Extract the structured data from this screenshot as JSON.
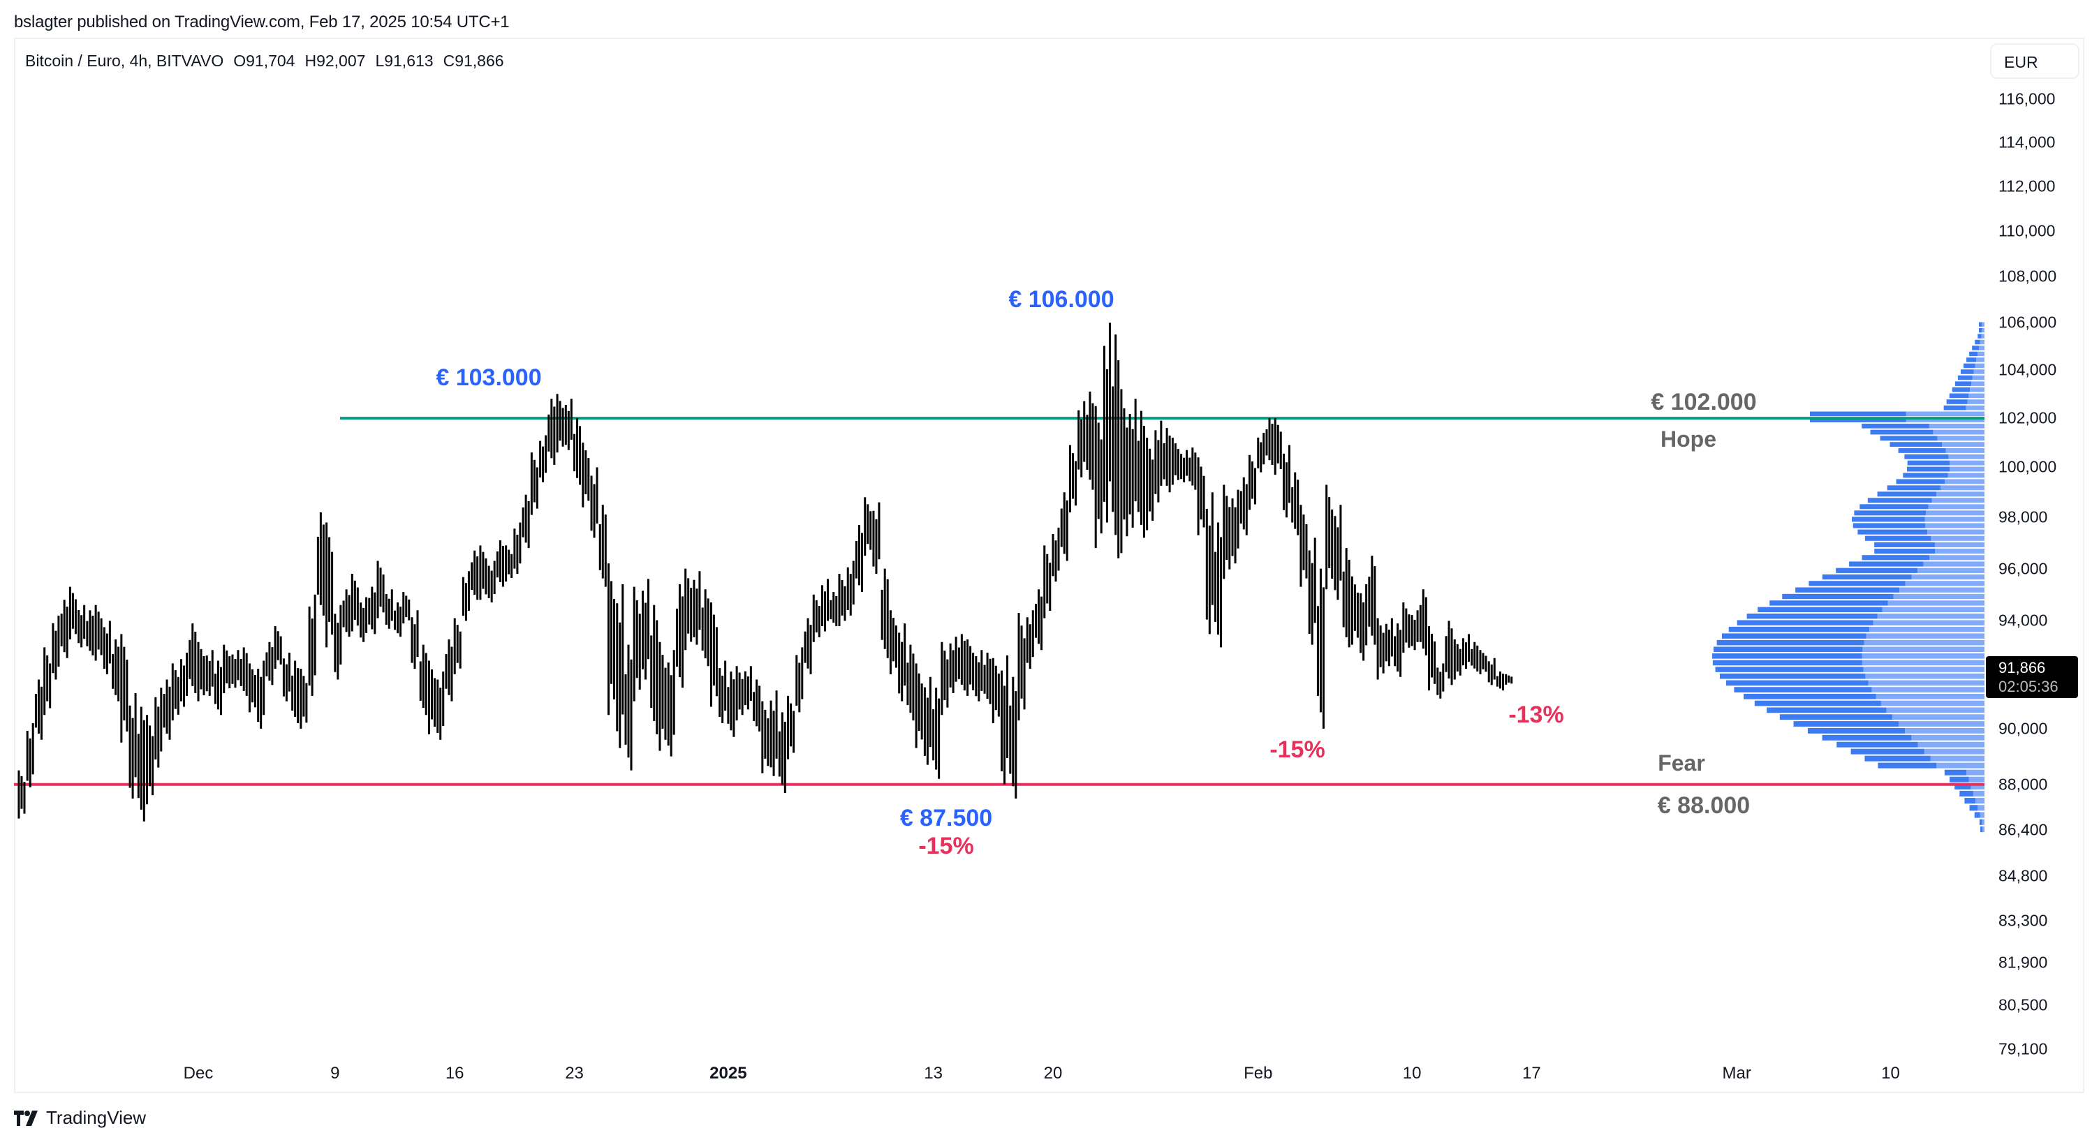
{
  "header": {
    "published": "bslagter published on TradingView.com, Feb 17, 2025 10:54 UTC+1"
  },
  "legend": {
    "symbol": "Bitcoin / Euro, 4h, BITVAVO",
    "open": "O91,704",
    "high": "H92,007",
    "low": "L91,613",
    "close": "C91,866"
  },
  "price_axis": {
    "currency": "EUR",
    "last_price": "91,866",
    "countdown": "02:05:36",
    "labels": [
      "116,000",
      "114,000",
      "112,000",
      "110,000",
      "108,000",
      "106,000",
      "104,000",
      "102,000",
      "100,000",
      "98,000",
      "96,000",
      "94,000",
      "90,000",
      "88,000",
      "86,400",
      "84,800",
      "83,300",
      "81,900",
      "80,500",
      "79,100"
    ]
  },
  "time_axis": {
    "labels": [
      {
        "text": "Dec",
        "date": "2024-12-01",
        "bold": false
      },
      {
        "text": "9",
        "date": "2024-12-09",
        "bold": false
      },
      {
        "text": "16",
        "date": "2024-12-16",
        "bold": false
      },
      {
        "text": "23",
        "date": "2024-12-23",
        "bold": false
      },
      {
        "text": "2025",
        "date": "2025-01-01",
        "bold": true
      },
      {
        "text": "13",
        "date": "2025-01-13",
        "bold": false
      },
      {
        "text": "20",
        "date": "2025-01-20",
        "bold": false
      },
      {
        "text": "Feb",
        "date": "2025-02-01",
        "bold": false
      },
      {
        "text": "10",
        "date": "2025-02-10",
        "bold": false
      },
      {
        "text": "17",
        "date": "2025-02-17",
        "bold": false
      },
      {
        "text": "Mar",
        "date": "2025-03-01",
        "bold": false
      },
      {
        "text": "10",
        "date": "2025-03-10",
        "bold": false
      }
    ]
  },
  "annotations": {
    "peak1": "€ 103.000",
    "peak2": "€ 106.000",
    "low1": "€ 87.500",
    "low1_pct": "-15%",
    "low2_pct": "-15%",
    "current_pct": "-13%",
    "hope_price": "€ 102.000",
    "hope_label": "Hope",
    "fear_label": "Fear",
    "fear_price": "€ 88.000"
  },
  "colors": {
    "candles": "#000000",
    "hope_line": "#089981",
    "fear_line": "#e7315a",
    "annotation_blue": "#2962ff",
    "annotation_red": "#e7315a",
    "annotation_gray": "#666666",
    "vp_dark": "#3d7bf2",
    "vp_light": "#82aafa"
  },
  "footer": {
    "brand": "TradingView"
  },
  "chart_data": {
    "type": "bar",
    "title": "Bitcoin / Euro, 4h, BITVAVO",
    "xlabel": "",
    "ylabel": "EUR",
    "y_scale": "log",
    "ylim": [
      79100,
      116000
    ],
    "grid": false,
    "x_range": [
      "2024-11-20",
      "2025-03-15"
    ],
    "ohlc_last": {
      "open": 91704,
      "high": 92007,
      "low": 91613,
      "close": 91866
    },
    "horizontal_lines": [
      {
        "name": "Hope",
        "price": 102000,
        "color": "#089981",
        "from": "2024-12-10"
      },
      {
        "name": "Fear",
        "price": 88000,
        "color": "#e7315a",
        "from": "2024-11-20"
      }
    ],
    "bars_interval": "12h",
    "bars_start": "2024-11-20T12:00",
    "bars_hl": [
      [
        88500,
        86800
      ],
      [
        90200,
        87900
      ],
      [
        91800,
        89600
      ],
      [
        93000,
        90500
      ],
      [
        94200,
        91800
      ],
      [
        94800,
        92600
      ],
      [
        95300,
        93300
      ],
      [
        94600,
        93000
      ],
      [
        94400,
        92700
      ],
      [
        94600,
        92500
      ],
      [
        94000,
        92000
      ],
      [
        93300,
        91000
      ],
      [
        93500,
        89500
      ],
      [
        91300,
        87500
      ],
      [
        90800,
        86700
      ],
      [
        90500,
        87300
      ],
      [
        91500,
        88600
      ],
      [
        91800,
        89600
      ],
      [
        92400,
        90300
      ],
      [
        92800,
        90800
      ],
      [
        93900,
        91300
      ],
      [
        93200,
        91000
      ],
      [
        92900,
        91200
      ],
      [
        92500,
        90500
      ],
      [
        93100,
        91300
      ],
      [
        92900,
        91500
      ],
      [
        93000,
        91200
      ],
      [
        92400,
        90600
      ],
      [
        92500,
        90000
      ],
      [
        93200,
        91600
      ],
      [
        93800,
        92200
      ],
      [
        92800,
        91000
      ],
      [
        92500,
        90200
      ],
      [
        92200,
        90000
      ],
      [
        95000,
        91200
      ],
      [
        98200,
        94200
      ],
      [
        97800,
        93000
      ],
      [
        94600,
        91800
      ],
      [
        95200,
        93400
      ],
      [
        95800,
        93600
      ],
      [
        94900,
        93200
      ],
      [
        95300,
        93500
      ],
      [
        96300,
        94100
      ],
      [
        95200,
        93700
      ],
      [
        94700,
        93400
      ],
      [
        95100,
        93900
      ],
      [
        94400,
        92200
      ],
      [
        93100,
        90500
      ],
      [
        92500,
        89800
      ],
      [
        92100,
        89600
      ],
      [
        93300,
        91000
      ],
      [
        94100,
        92000
      ],
      [
        95900,
        94000
      ],
      [
        96700,
        94800
      ],
      [
        96900,
        94800
      ],
      [
        96300,
        94700
      ],
      [
        97100,
        95300
      ],
      [
        96900,
        95500
      ],
      [
        97800,
        95800
      ],
      [
        98900,
        96800
      ],
      [
        100600,
        98100
      ],
      [
        101300,
        99400
      ],
      [
        102800,
        100100
      ],
      [
        103000,
        100600
      ],
      [
        102800,
        100700
      ],
      [
        102000,
        99300
      ],
      [
        101000,
        98400
      ],
      [
        100000,
        97200
      ],
      [
        98500,
        95300
      ],
      [
        96200,
        90500
      ],
      [
        95400,
        89300
      ],
      [
        93100,
        88500
      ],
      [
        95300,
        91000
      ],
      [
        95600,
        91800
      ],
      [
        94600,
        89800
      ],
      [
        93200,
        89200
      ],
      [
        92900,
        89000
      ],
      [
        95400,
        91500
      ],
      [
        96000,
        92900
      ],
      [
        95900,
        93100
      ],
      [
        95200,
        92300
      ],
      [
        94700,
        90800
      ],
      [
        92500,
        90200
      ],
      [
        92100,
        89700
      ],
      [
        92300,
        90300
      ],
      [
        92300,
        90700
      ],
      [
        91800,
        89900
      ],
      [
        91000,
        88400
      ],
      [
        91400,
        88300
      ],
      [
        90600,
        87700
      ],
      [
        91200,
        88900
      ],
      [
        93000,
        90600
      ],
      [
        94100,
        92000
      ],
      [
        95000,
        93200
      ],
      [
        95600,
        93600
      ],
      [
        95100,
        93800
      ],
      [
        95800,
        93800
      ],
      [
        96300,
        94200
      ],
      [
        97700,
        95100
      ],
      [
        98800,
        96500
      ],
      [
        98600,
        95800
      ],
      [
        96000,
        92600
      ],
      [
        94400,
        92000
      ],
      [
        93900,
        91000
      ],
      [
        93100,
        90300
      ],
      [
        92400,
        89300
      ],
      [
        91900,
        88700
      ],
      [
        91500,
        88200
      ],
      [
        93200,
        90500
      ],
      [
        93400,
        91300
      ],
      [
        93500,
        91400
      ],
      [
        93300,
        91200
      ],
      [
        92900,
        91000
      ],
      [
        92800,
        90900
      ],
      [
        92600,
        90200
      ],
      [
        92700,
        88000
      ],
      [
        91900,
        87500
      ],
      [
        94300,
        90300
      ],
      [
        94400,
        92200
      ],
      [
        95200,
        92900
      ],
      [
        96900,
        94100
      ],
      [
        97600,
        95500
      ],
      [
        99000,
        96300
      ],
      [
        100900,
        98200
      ],
      [
        102700,
        99600
      ],
      [
        103100,
        99100
      ],
      [
        102500,
        96800
      ],
      [
        106000,
        97800
      ],
      [
        105500,
        96400
      ],
      [
        103200,
        96600
      ],
      [
        102800,
        97600
      ],
      [
        102300,
        97200
      ],
      [
        101200,
        97500
      ],
      [
        101900,
        98600
      ],
      [
        101600,
        99000
      ],
      [
        101200,
        99300
      ],
      [
        100700,
        99400
      ],
      [
        100800,
        99100
      ],
      [
        100400,
        97300
      ],
      [
        99000,
        93500
      ],
      [
        97800,
        93000
      ],
      [
        99300,
        95600
      ],
      [
        99100,
        96200
      ],
      [
        99600,
        97300
      ],
      [
        100500,
        98300
      ],
      [
        101400,
        99800
      ],
      [
        102000,
        100100
      ],
      [
        102000,
        99700
      ],
      [
        100900,
        98000
      ],
      [
        99800,
        97300
      ],
      [
        98500,
        95300
      ],
      [
        97200,
        93100
      ],
      [
        96000,
        90000
      ],
      [
        99300,
        95200
      ],
      [
        98500,
        94800
      ],
      [
        96800,
        93000
      ],
      [
        95700,
        93100
      ],
      [
        95400,
        92500
      ],
      [
        96500,
        93100
      ],
      [
        94100,
        91800
      ],
      [
        94100,
        92300
      ],
      [
        93900,
        91900
      ],
      [
        94700,
        92800
      ],
      [
        94400,
        92900
      ],
      [
        95200,
        92700
      ],
      [
        93800,
        91400
      ],
      [
        92400,
        91100
      ],
      [
        94000,
        91600
      ],
      [
        93300,
        91800
      ],
      [
        93500,
        92200
      ],
      [
        93200,
        92100
      ],
      [
        92900,
        92000
      ],
      [
        92600,
        91600
      ],
      [
        92100,
        91400
      ],
      [
        92000,
        91613
      ]
    ],
    "volume_profile": {
      "price_levels_from": 86400,
      "price_levels_to": 106000,
      "row_height_eur": 250,
      "note": "right-aligned horizontal histogram on the price axis; wide around 92,000-94,000 (POC ≈ 92,000) and narrowing toward 106,000 and 86,400"
    }
  }
}
